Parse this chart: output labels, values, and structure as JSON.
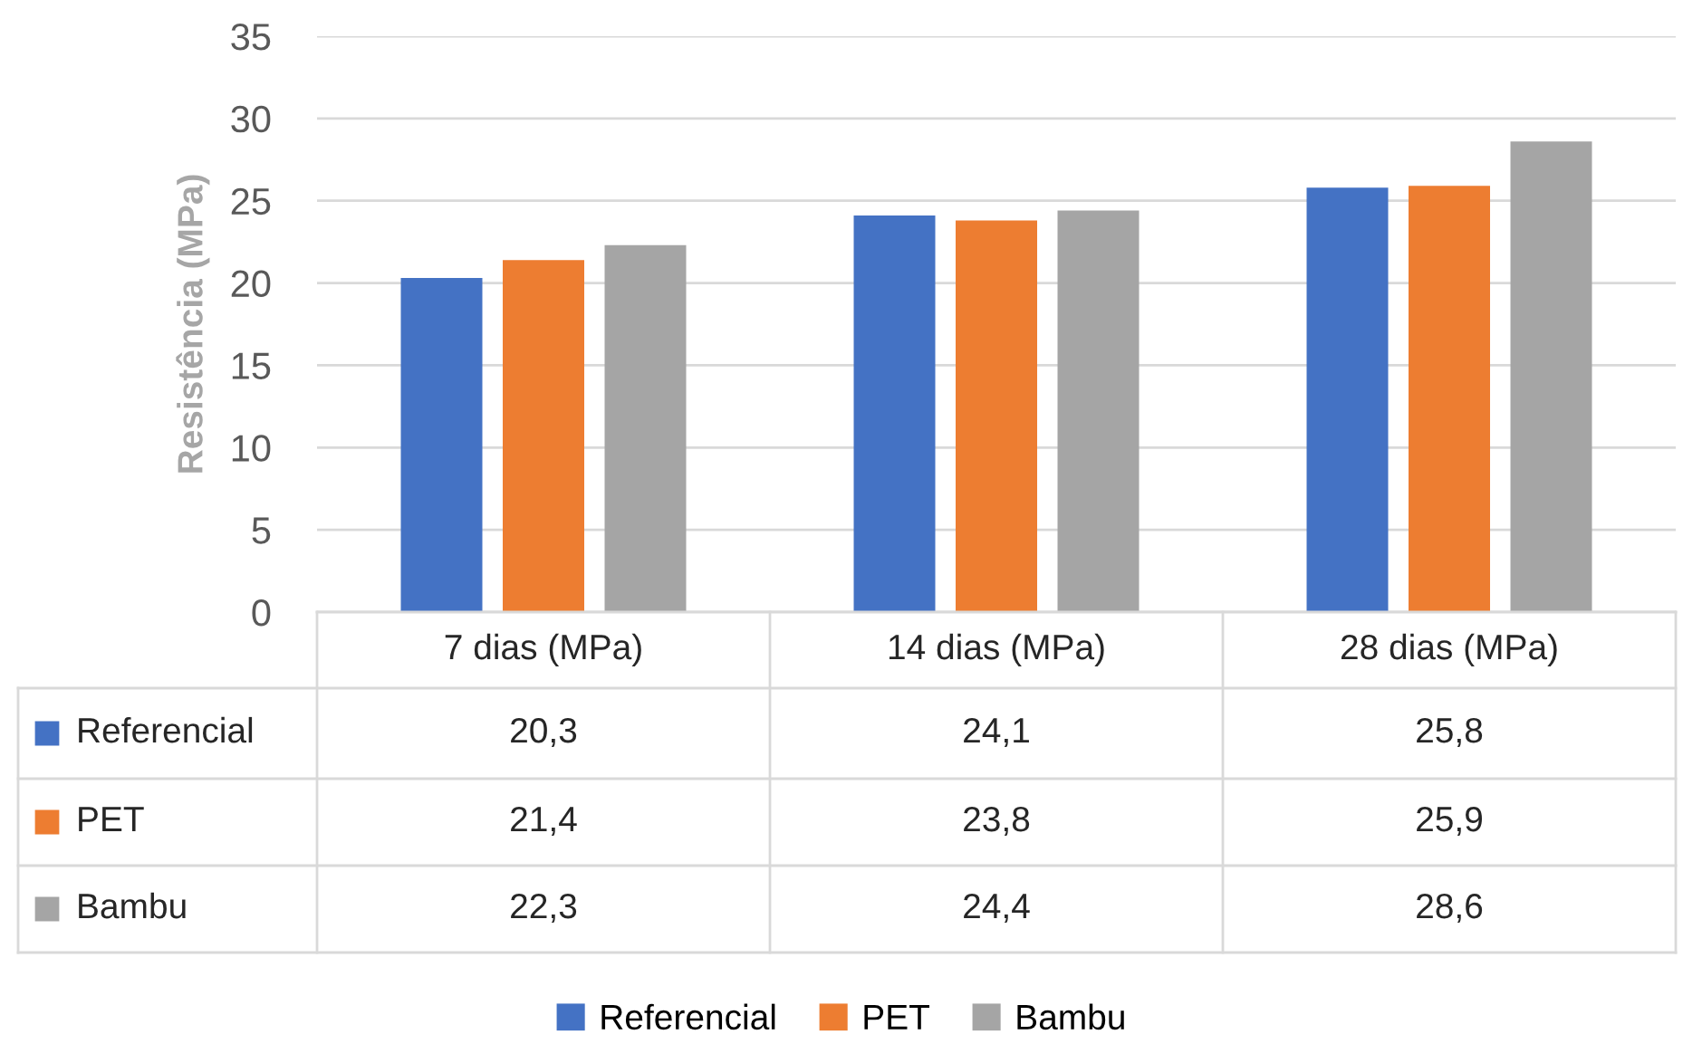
{
  "chart_data": {
    "type": "bar",
    "ylabel": "Resistência (MPa)",
    "categories": [
      "7 dias (MPa)",
      "14 dias (MPa)",
      "28 dias (MPa)"
    ],
    "series": [
      {
        "name": "Referencial",
        "color": "#4472c4",
        "values": [
          20.3,
          24.1,
          25.8
        ],
        "value_labels": [
          "20,3",
          "24,1",
          "25,8"
        ]
      },
      {
        "name": "PET",
        "color": "#ed7d31",
        "values": [
          21.4,
          23.8,
          25.9
        ],
        "value_labels": [
          "21,4",
          "23,8",
          "25,9"
        ]
      },
      {
        "name": "Bambu",
        "color": "#a5a5a5",
        "values": [
          22.3,
          24.4,
          28.6
        ],
        "value_labels": [
          "22,3",
          "24,4",
          "28,6"
        ]
      }
    ],
    "ylim": [
      0,
      35
    ],
    "yticks": [
      0,
      5,
      10,
      15,
      20,
      25,
      30,
      35
    ],
    "grid": "y",
    "legend": "bottom"
  }
}
